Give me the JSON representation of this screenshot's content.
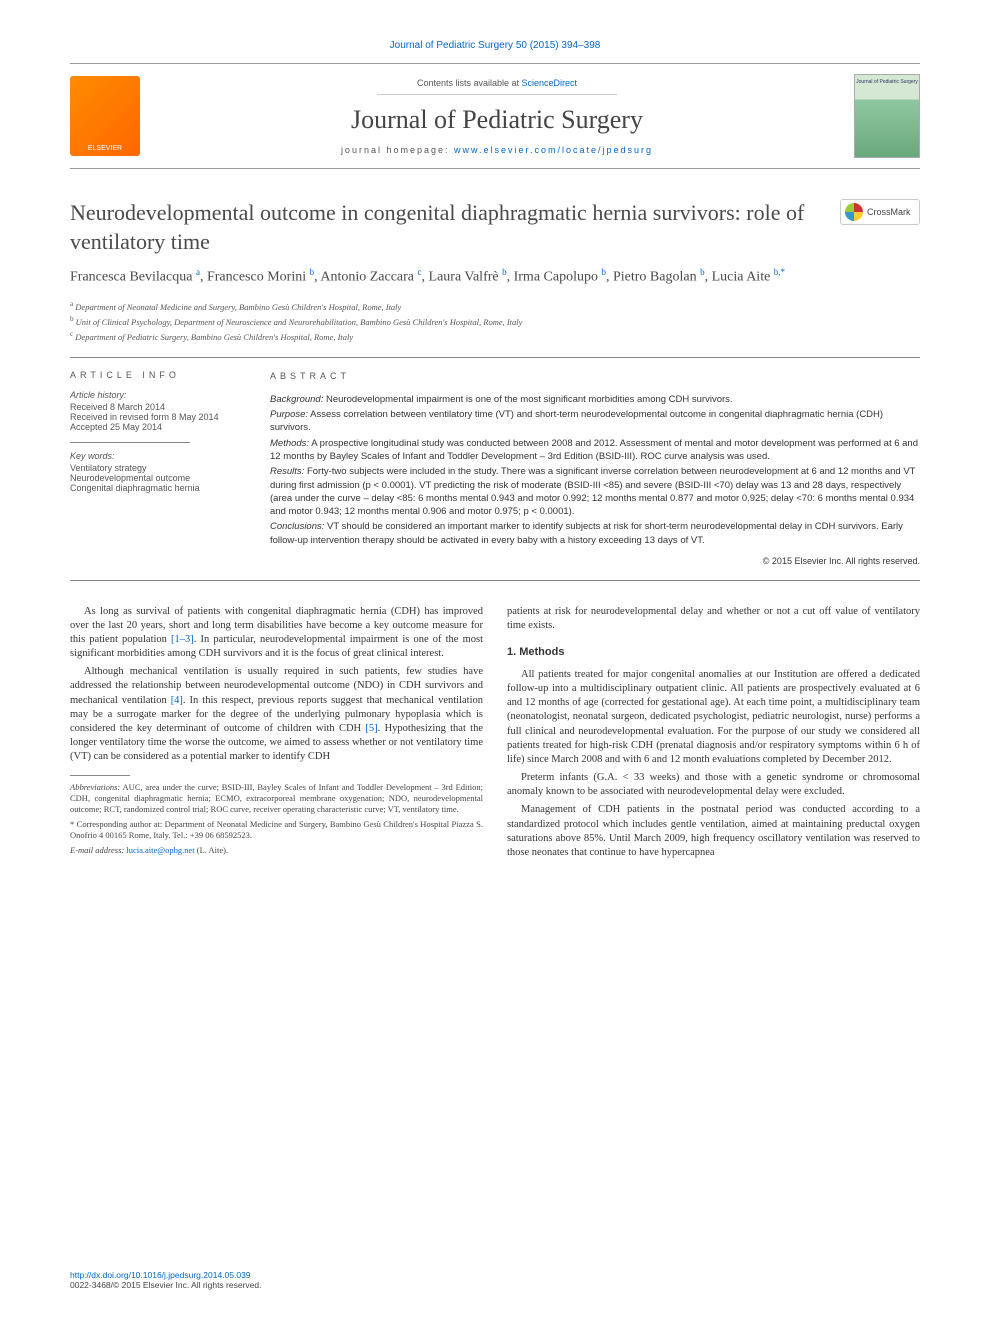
{
  "header": {
    "citation": "Journal of Pediatric Surgery 50 (2015) 394–398",
    "contents_prefix": "Contents lists available at ",
    "contents_link": "ScienceDirect",
    "journal_name": "Journal of Pediatric Surgery",
    "homepage_prefix": "journal homepage: ",
    "homepage_url": "www.elsevier.com/locate/jpedsurg",
    "publisher_logo": "ELSEVIER",
    "cover_label": "Journal of Pediatric Surgery",
    "crossmark": "CrossMark"
  },
  "article": {
    "title": "Neurodevelopmental outcome in congenital diaphragmatic hernia survivors: role of ventilatory time",
    "authors_html": "Francesca Bevilacqua <sup>a</sup>, Francesco Morini <sup>b</sup>, Antonio Zaccara <sup>c</sup>, Laura Valfrè <sup>b</sup>, Irma Capolupo <sup>b</sup>, Pietro Bagolan <sup>b</sup>, Lucia Aite <sup>b,*</sup>",
    "affiliations": {
      "a": "Department of Neonatal Medicine and Surgery, Bambino Gesù Children's Hospital, Rome, Italy",
      "b": "Unit of Clinical Psychology, Department of Neuroscience and Neurorehabilitation, Bambino Gesù Children's Hospital, Rome, Italy",
      "c": "Department of Pediatric Surgery, Bambino Gesù Children's Hospital, Rome, Italy"
    }
  },
  "article_info": {
    "heading": "ARTICLE INFO",
    "history_label": "Article history:",
    "received": "Received 8 March 2014",
    "revised": "Received in revised form 8 May 2014",
    "accepted": "Accepted 25 May 2014",
    "keywords_label": "Key words:",
    "keywords": [
      "Ventilatory strategy",
      "Neurodevelopmental outcome",
      "Congenital diaphragmatic hernia"
    ]
  },
  "abstract": {
    "heading": "ABSTRACT",
    "background_label": "Background:",
    "background": "Neurodevelopmental impairment is one of the most significant morbidities among CDH survivors.",
    "purpose_label": "Purpose:",
    "purpose": "Assess correlation between ventilatory time (VT) and short-term neurodevelopmental outcome in congenital diaphragmatic hernia (CDH) survivors.",
    "methods_label": "Methods:",
    "methods": "A prospective longitudinal study was conducted between 2008 and 2012. Assessment of mental and motor development was performed at 6 and 12 months by Bayley Scales of Infant and Toddler Development – 3rd Edition (BSID-III). ROC curve analysis was used.",
    "results_label": "Results:",
    "results": "Forty-two subjects were included in the study. There was a significant inverse correlation between neurodevelopment at 6 and 12 months and VT during first admission (p < 0.0001). VT predicting the risk of moderate (BSID-III <85) and severe (BSID-III <70) delay was 13 and 28 days, respectively (area under the curve – delay <85: 6 months mental 0.943 and motor 0.992; 12 months mental 0.877 and motor 0.925; delay <70: 6 months mental 0.934 and motor 0.943; 12 months mental 0.906 and motor 0.975; p < 0.0001).",
    "conclusions_label": "Conclusions:",
    "conclusions": "VT should be considered an important marker to identify subjects at risk for short-term neurodevelopmental delay in CDH survivors. Early follow-up intervention therapy should be activated in every baby with a history exceeding 13 days of VT.",
    "copyright": "© 2015 Elsevier Inc. All rights reserved."
  },
  "body": {
    "p1": "As long as survival of patients with congenital diaphragmatic hernia (CDH) has improved over the last 20 years, short and long term disabilities have become a key outcome measure for this patient population ",
    "p1_ref": "[1–3]",
    "p1_tail": ". In particular, neurodevelopmental impairment is one of the most significant morbidities among CDH survivors and it is the focus of great clinical interest.",
    "p2": "Although mechanical ventilation is usually required in such patients, few studies have addressed the relationship between neurodevelopmental outcome (NDO) in CDH survivors and mechanical ventilation ",
    "p2_ref": "[4]",
    "p2_mid": ". In this respect, previous reports suggest that mechanical ventilation may be a surrogate marker for the degree of the underlying pulmonary hypoplasia which is considered the key determinant of outcome of children with CDH ",
    "p2_ref2": "[5]",
    "p2_tail": ". Hypothesizing that the longer ventilatory time the worse the outcome, we aimed to assess whether or not ventilatory time (VT) can be considered as a potential marker to identify CDH",
    "p3": "patients at risk for neurodevelopmental delay and whether or not a cut off value of ventilatory time exists.",
    "methods_heading": "1. Methods",
    "m1": "All patients treated for major congenital anomalies at our Institution are offered a dedicated follow-up into a multidisciplinary outpatient clinic. All patients are prospectively evaluated at 6 and 12 months of age (corrected for gestational age). At each time point, a multidisciplinary team (neonatologist, neonatal surgeon, dedicated psychologist, pediatric neurologist, nurse) performs a full clinical and neurodevelopmental evaluation. For the purpose of our study we considered all patients treated for high-risk CDH (prenatal diagnosis and/or respiratory symptoms within 6 h of life) since March 2008 and with 6 and 12 month evaluations completed by December 2012.",
    "m2": "Preterm infants (G.A. < 33 weeks) and those with a genetic syndrome or chromosomal anomaly known to be associated with neurodevelopmental delay were excluded.",
    "m3": "Management of CDH patients in the postnatal period was conducted according to a standardized protocol which includes gentle ventilation, aimed at maintaining preductal oxygen saturations above 85%. Until March 2009, high frequency oscillatory ventilation was reserved to those neonates that continue to have hypercapnea"
  },
  "footnotes": {
    "abbrev_label": "Abbreviations:",
    "abbrev": " AUC, area under the curve; BSID-III, Bayley Scales of Infant and Toddler Development – 3rd Edition; CDH, congenital diaphragmatic hernia; ECMO, extracorporeal membrane oxygenation; NDO, neurodevelopmental outcome; RCT, randomized control trial; ROC curve, receiver operating characteristic curve; VT, ventilatory time.",
    "corresp": "* Corresponding author at: Department of Neonatal Medicine and Surgery, Bambino Gesù Children's Hospital Piazza S. Onofrio 4 00165 Rome, Italy. Tel.: +39 06 68592523.",
    "email_label": "E-mail address: ",
    "email": "lucia.aite@opbg.net",
    "email_suffix": " (L. Aite)."
  },
  "footer": {
    "doi": "http://dx.doi.org/10.1016/j.jpedsurg.2014.05.039",
    "issn": "0022-3468/© 2015 Elsevier Inc. All rights reserved."
  },
  "colors": {
    "link": "#0066cc",
    "text": "#333333",
    "heading": "#4a4a4a",
    "rule": "#888888",
    "elsevier_orange": "#ff8c00"
  },
  "typography": {
    "title_fontsize": 22,
    "journal_fontsize": 26,
    "authors_fontsize": 14,
    "body_fontsize": 10.5,
    "abstract_fontsize": 9.5,
    "footnote_fontsize": 8.5
  }
}
